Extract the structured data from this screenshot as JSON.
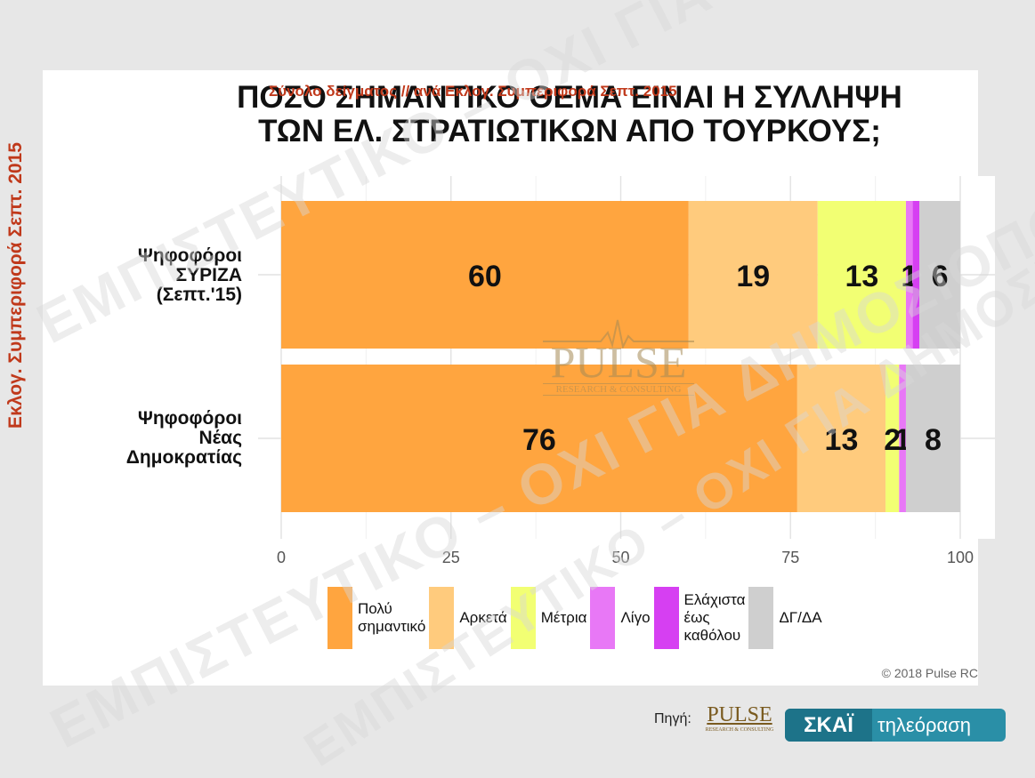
{
  "title_line1": "ΠΟΣΟ ΣΗΜΑΝΤΙΚΟ ΘΕΜΑ ΕΙΝΑΙ Η ΣΥΛΛΗΨΗ",
  "title_line2": "ΤΩΝ ΕΛ. ΣΤΡΑΤΙΩΤΙΚΩΝ ΑΠΟ ΤΟΥΡΚΟΥΣ;",
  "subtitle": "Σύνολο δείγματος // ανά Εκλογ. Συμπεριφορά Σεπτ. 2015",
  "ylabel": "Εκλογ. Συμπεριφορά Σεπτ. 2015",
  "copyright": "© 2018 Pulse RC",
  "source_label": "Πηγή:",
  "logo": {
    "pulse": "PULSE",
    "pulse_sub": "RESEARCH & CONSULTING",
    "skai": "ΣΚΑΪ",
    "skai_tv": "τηλεόραση"
  },
  "watermarks": [
    "ΕΜΠΙΣΤΕΥΤΙΚΟ – ΟΧΙ ΓΙΑ ΔΗΜΟΣΙΟΠΟΙΗΣΗ",
    "ΕΜΠΙΣΤΕΥΤΙΚΟ – ΟΧΙ ΓΙΑ ΔΗΜΟΣΙΟΠΟΙΗΣΗ",
    "ΕΜΠΙΣΤΕΥΤΙΚΟ – ΟΧΙ ΓΙΑ ΔΗΜΟΣΙΟΠΟΙΗΣΗ"
  ],
  "chart_data": {
    "type": "bar",
    "orientation": "horizontal-stacked",
    "categories": [
      "Ψηφοφόροι\nΣΥΡΙΖΑ\n(Σεπτ.'15)",
      "Ψηφοφόροι\nΝέας\nΔημοκρατίας"
    ],
    "series": [
      {
        "name": "Πολύ\nσημαντικό",
        "color": "#ffa53f",
        "values": [
          60,
          76
        ]
      },
      {
        "name": "Αρκετά",
        "color": "#ffcb7d",
        "values": [
          19,
          13
        ]
      },
      {
        "name": "Μέτρια",
        "color": "#f2ff73",
        "values": [
          13,
          2
        ]
      },
      {
        "name": "Λίγο",
        "color": "#e878f6",
        "values": [
          1,
          1
        ]
      },
      {
        "name": "Ελάχιστα\nέως\nκαθόλου",
        "color": "#d63ff2",
        "values": [
          1,
          0
        ]
      },
      {
        "name": "ΔΓ/ΔΑ",
        "color": "#cfcfcf",
        "values": [
          6,
          8
        ]
      }
    ],
    "xlim": [
      0,
      100
    ],
    "xticks": [
      0,
      25,
      50,
      75,
      100
    ],
    "grid": true,
    "legend": "bottom"
  }
}
